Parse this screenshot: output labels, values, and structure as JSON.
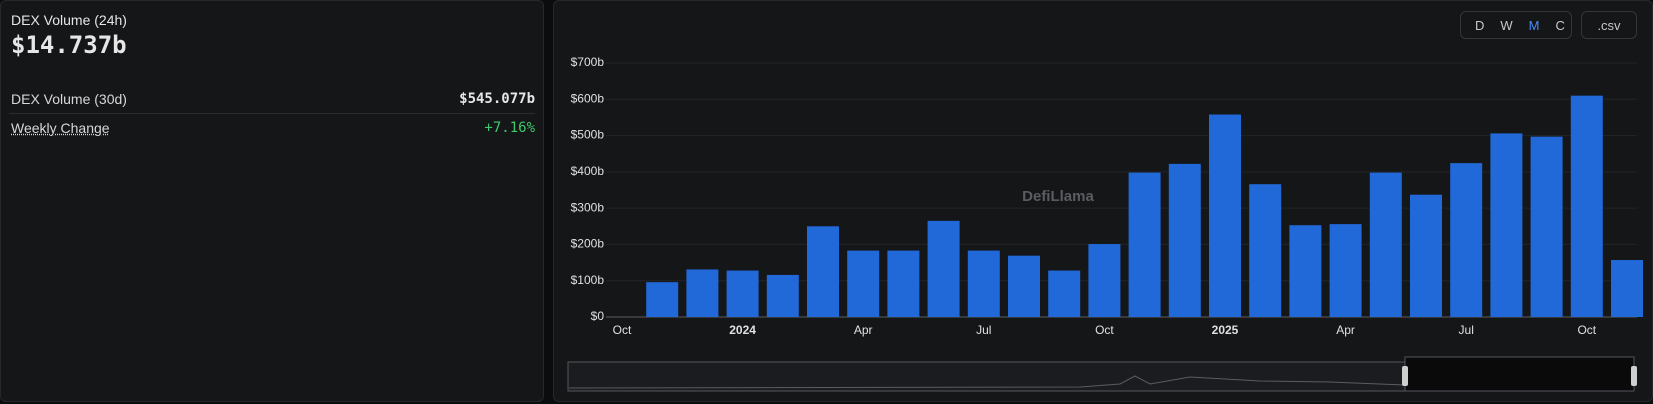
{
  "summary": {
    "title": "DEX Volume (24h)",
    "value": "$14.737b",
    "rows": [
      {
        "label": "DEX Volume (30d)",
        "value": "$545.077b"
      },
      {
        "label": "Weekly Change",
        "value": "+7.16%"
      }
    ]
  },
  "controls": {
    "periods": [
      "D",
      "W",
      "M",
      "C"
    ],
    "active": "M",
    "download": ".csv"
  },
  "watermark": "DefiLlama",
  "chart_data": {
    "type": "bar",
    "color": "#2168d8",
    "categories": [
      "Oct",
      null,
      null,
      "2024",
      null,
      null,
      "Apr",
      null,
      null,
      "Jul",
      null,
      null,
      "Oct",
      null,
      null,
      "2025",
      null,
      null,
      "Apr",
      null,
      null,
      "Jul",
      null,
      null,
      "Oct",
      null
    ],
    "values": [
      null,
      96,
      131,
      128,
      116,
      250,
      183,
      183,
      265,
      183,
      169,
      128,
      201,
      398,
      422,
      558,
      366,
      253,
      256,
      398,
      337,
      424,
      506,
      497,
      610,
      157
    ],
    "ylim": [
      0,
      700
    ],
    "yticks": [
      {
        "value": 0,
        "label": "$0"
      },
      {
        "value": 100,
        "label": "$100b"
      },
      {
        "value": 200,
        "label": "$200b"
      },
      {
        "value": 300,
        "label": "$300b"
      },
      {
        "value": 400,
        "label": "$400b"
      },
      {
        "value": 500,
        "label": "$500b"
      },
      {
        "value": 600,
        "label": "$600b"
      },
      {
        "value": 700,
        "label": "$700b"
      }
    ],
    "grid": true
  }
}
